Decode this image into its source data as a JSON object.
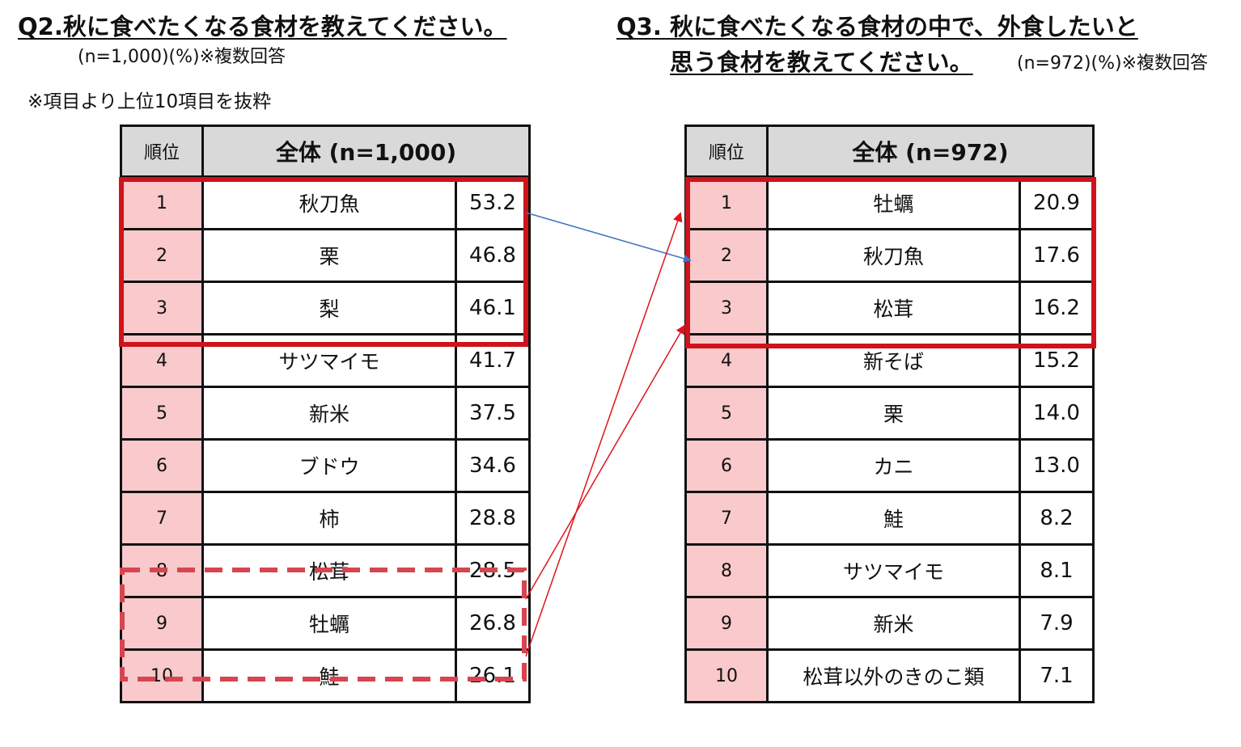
{
  "q2": {
    "title": "Q2.秋に食べたくなる食材を教えてください。",
    "note": "(n=1,000)(%)※複数回答",
    "extract_note": "※項目より上位10項目を抜粋",
    "table": {
      "header_rank": "順位",
      "header_total": "全体 (n=1,000)",
      "rows": [
        {
          "rank": "1",
          "item": "秋刀魚",
          "value": "53.2"
        },
        {
          "rank": "2",
          "item": "栗",
          "value": "46.8"
        },
        {
          "rank": "3",
          "item": "梨",
          "value": "46.1"
        },
        {
          "rank": "4",
          "item": "サツマイモ",
          "value": "41.7"
        },
        {
          "rank": "5",
          "item": "新米",
          "value": "37.5"
        },
        {
          "rank": "6",
          "item": "ブドウ",
          "value": "34.6"
        },
        {
          "rank": "7",
          "item": "柿",
          "value": "28.8"
        },
        {
          "rank": "8",
          "item": "松茸",
          "value": "28.5"
        },
        {
          "rank": "9",
          "item": "牡蠣",
          "value": "26.8"
        },
        {
          "rank": "10",
          "item": "鮭",
          "value": "26.1"
        }
      ]
    }
  },
  "q3": {
    "title_line1": "Q3. 秋に食べたくなる食材の中で、外食したいと",
    "title_line2": "思う食材を教えてください。",
    "note": "(n=972)(%)※複数回答",
    "table": {
      "header_rank": "順位",
      "header_total": "全体 (n=972)",
      "rows": [
        {
          "rank": "1",
          "item": "牡蠣",
          "value": "20.9"
        },
        {
          "rank": "2",
          "item": "秋刀魚",
          "value": "17.6"
        },
        {
          "rank": "3",
          "item": "松茸",
          "value": "16.2"
        },
        {
          "rank": "4",
          "item": "新そば",
          "value": "15.2"
        },
        {
          "rank": "5",
          "item": "栗",
          "value": "14.0"
        },
        {
          "rank": "6",
          "item": "カニ",
          "value": "13.0"
        },
        {
          "rank": "7",
          "item": "鮭",
          "value": "8.2"
        },
        {
          "rank": "8",
          "item": "サツマイモ",
          "value": "8.1"
        },
        {
          "rank": "9",
          "item": "新米",
          "value": "7.9"
        },
        {
          "rank": "10",
          "item": "松茸以外のきのこ類",
          "value": "7.1"
        }
      ]
    }
  },
  "chart_data": [
    {
      "type": "table",
      "title": "Q2.秋に食べたくなる食材を教えてください。",
      "unit": "%",
      "n": "n=1,000",
      "columns": [
        "順位",
        "全体 (n=1,000)",
        ""
      ],
      "categories": [
        "秋刀魚",
        "栗",
        "梨",
        "サツマイモ",
        "新米",
        "ブドウ",
        "柿",
        "松茸",
        "牡蠣",
        "鮭"
      ],
      "values": [
        53.2,
        46.8,
        46.1,
        41.7,
        37.5,
        34.6,
        28.8,
        28.5,
        26.8,
        26.1
      ]
    },
    {
      "type": "table",
      "title": "Q3. 秋に食べたくなる食材の中で、外食したいと思う食材を教えてください。",
      "unit": "%",
      "n": "n=972",
      "columns": [
        "順位",
        "全体 (n=972)",
        ""
      ],
      "categories": [
        "牡蠣",
        "秋刀魚",
        "松茸",
        "新そば",
        "栗",
        "カニ",
        "鮭",
        "サツマイモ",
        "新米",
        "松茸以外のきのこ類"
      ],
      "values": [
        20.9,
        17.6,
        16.2,
        15.2,
        14.0,
        13.0,
        8.2,
        8.1,
        7.9,
        7.1
      ]
    }
  ],
  "colors": {
    "highlight_red": "#d0121b",
    "rank_fill": "#f9c9cc",
    "header_fill": "#d9d9d9",
    "arrow_blue": "#4472c4",
    "arrow_red": "#e0141e"
  }
}
